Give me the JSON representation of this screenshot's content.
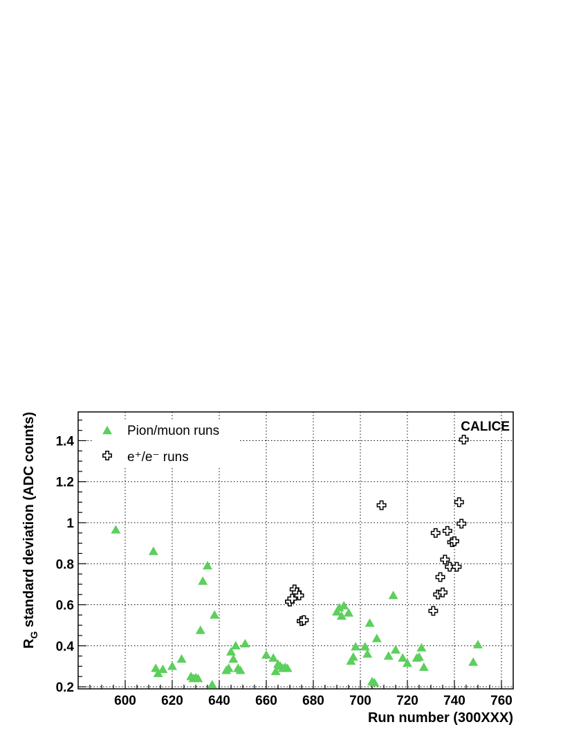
{
  "chart_data": {
    "type": "scatter",
    "annotation": "CALICE",
    "xlabel": "Run number (300XXX)",
    "ylabel_main": "R",
    "ylabel_sub": "G",
    "ylabel_rest": " standard deviation (ADC counts)",
    "xlim": [
      580,
      765
    ],
    "ylim": [
      0.19,
      1.54
    ],
    "x_ticks": [
      600,
      620,
      640,
      660,
      680,
      700,
      720,
      740,
      760
    ],
    "y_ticks": [
      0.2,
      0.4,
      0.6,
      0.8,
      1.0,
      1.2,
      1.4
    ],
    "y_tick_labels": [
      "0.2",
      "0.4",
      "0.6",
      "0.8",
      "1",
      "1.2",
      "1.4"
    ],
    "grid": true,
    "legend_position": "top-left",
    "series": [
      {
        "name": "Pion/muon runs",
        "marker": "triangle",
        "color": "#5ccf5c",
        "points": [
          [
            596,
            0.965
          ],
          [
            612,
            0.86
          ],
          [
            613,
            0.29
          ],
          [
            614,
            0.265
          ],
          [
            616,
            0.285
          ],
          [
            620,
            0.3
          ],
          [
            624,
            0.335
          ],
          [
            628,
            0.25
          ],
          [
            629,
            0.24
          ],
          [
            630,
            0.245
          ],
          [
            631,
            0.24
          ],
          [
            632,
            0.475
          ],
          [
            633,
            0.715
          ],
          [
            635,
            0.79
          ],
          [
            637,
            0.21
          ],
          [
            638,
            0.55
          ],
          [
            643,
            0.28
          ],
          [
            644,
            0.29
          ],
          [
            645,
            0.37
          ],
          [
            646,
            0.335
          ],
          [
            647,
            0.4
          ],
          [
            648,
            0.29
          ],
          [
            649,
            0.28
          ],
          [
            651,
            0.41
          ],
          [
            660,
            0.355
          ],
          [
            663,
            0.34
          ],
          [
            664,
            0.275
          ],
          [
            665,
            0.31
          ],
          [
            666,
            0.3
          ],
          [
            667,
            0.29
          ],
          [
            668,
            0.295
          ],
          [
            669,
            0.29
          ],
          [
            690,
            0.565
          ],
          [
            691,
            0.585
          ],
          [
            692,
            0.545
          ],
          [
            693,
            0.595
          ],
          [
            695,
            0.56
          ],
          [
            696,
            0.325
          ],
          [
            697,
            0.345
          ],
          [
            698,
            0.395
          ],
          [
            702,
            0.395
          ],
          [
            703,
            0.36
          ],
          [
            704,
            0.51
          ],
          [
            705,
            0.225
          ],
          [
            706,
            0.22
          ],
          [
            707,
            0.435
          ],
          [
            712,
            0.35
          ],
          [
            714,
            0.645
          ],
          [
            715,
            0.38
          ],
          [
            718,
            0.34
          ],
          [
            720,
            0.315
          ],
          [
            724,
            0.34
          ],
          [
            725,
            0.345
          ],
          [
            726,
            0.39
          ],
          [
            727,
            0.295
          ],
          [
            748,
            0.32
          ],
          [
            750,
            0.405
          ]
        ]
      },
      {
        "name": "e⁺/e⁻ runs",
        "marker": "open-cross",
        "color": "#000000",
        "points": [
          [
            670,
            0.615
          ],
          [
            671,
            0.63
          ],
          [
            672,
            0.675
          ],
          [
            673,
            0.66
          ],
          [
            674,
            0.645
          ],
          [
            675,
            0.52
          ],
          [
            676,
            0.525
          ],
          [
            709,
            1.085
          ],
          [
            731,
            0.57
          ],
          [
            732,
            0.95
          ],
          [
            733,
            0.65
          ],
          [
            734,
            0.735
          ],
          [
            735,
            0.66
          ],
          [
            736,
            0.82
          ],
          [
            737,
            0.96
          ],
          [
            738,
            0.785
          ],
          [
            739,
            0.905
          ],
          [
            740,
            0.91
          ],
          [
            741,
            0.785
          ],
          [
            742,
            1.1
          ],
          [
            743,
            0.995
          ],
          [
            744,
            1.405
          ]
        ]
      }
    ]
  }
}
